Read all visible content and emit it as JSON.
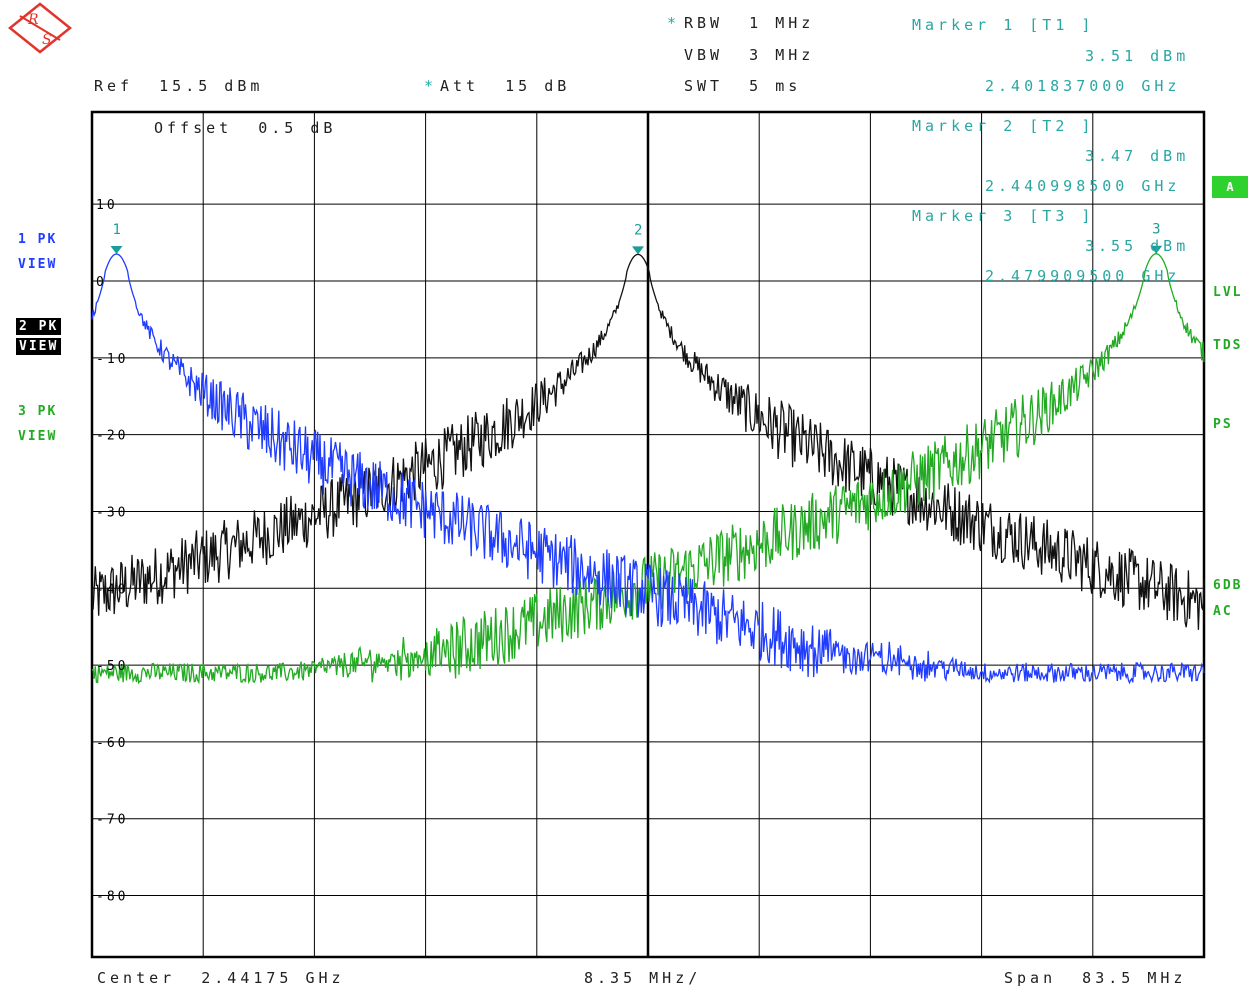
{
  "header": {
    "rbw": "RBW  1 MHz",
    "vbw": "VBW  3 MHz",
    "swt": "SWT  5 ms",
    "ref": "Ref  15.5 dBm",
    "att": "Att  15 dB",
    "star": "*",
    "offset": "Offset  0.5 dB"
  },
  "markers": [
    {
      "title": "Marker 1 [T1 ]",
      "level": "3.51 dBm",
      "freq": "2.401837000 GHz"
    },
    {
      "title": "Marker 2 [T2 ]",
      "level": "3.47 dBm",
      "freq": "2.440998500 GHz"
    },
    {
      "title": "Marker 3 [T3 ]",
      "level": "3.55 dBm",
      "freq": "2.479909500 GHz"
    }
  ],
  "side_left": [
    {
      "line1": "1 PK",
      "line2": "VIEW",
      "color": "#1f3cff"
    },
    {
      "line1": "2 PK",
      "line2": "VIEW",
      "color": "#000000"
    },
    {
      "line1": "3 PK",
      "line2": "VIEW",
      "color": "#22aa22"
    }
  ],
  "side_right": {
    "a": "A",
    "lvl": "LVL",
    "tds": "TDS",
    "ps": "PS",
    "db6": "6DB",
    "ac": "AC"
  },
  "footer": {
    "center": "Center  2.44175 GHz",
    "div": "8.35 MHz/",
    "span": "Span  83.5 MHz"
  },
  "chart_data": {
    "type": "line",
    "xlabel": "",
    "ylabel": "",
    "xlim": [
      2.4,
      2.4835
    ],
    "ylim": [
      -88,
      22
    ],
    "x_unit": "GHz",
    "y_unit": "dBm",
    "yticks": [
      10,
      0,
      -10,
      -20,
      -30,
      -40,
      -50,
      -60,
      -70,
      -80
    ],
    "ytick_labels": [
      "10",
      "0",
      "-10",
      "-20",
      "-30",
      "-40",
      "-50",
      "-60",
      "-70",
      "-80"
    ],
    "noise_floor": -51,
    "series": [
      {
        "color": "#1f3cff",
        "peak_x": 2.401837,
        "peak_y": 3.51
      },
      {
        "color": "#111111",
        "peak_x": 2.4409985,
        "peak_y": 3.47
      },
      {
        "color": "#22aa22",
        "peak_x": 2.4799095,
        "peak_y": 3.55
      }
    ],
    "marker_labels": [
      "1",
      "2",
      "3"
    ],
    "marker_color": "#1b9e9a"
  }
}
